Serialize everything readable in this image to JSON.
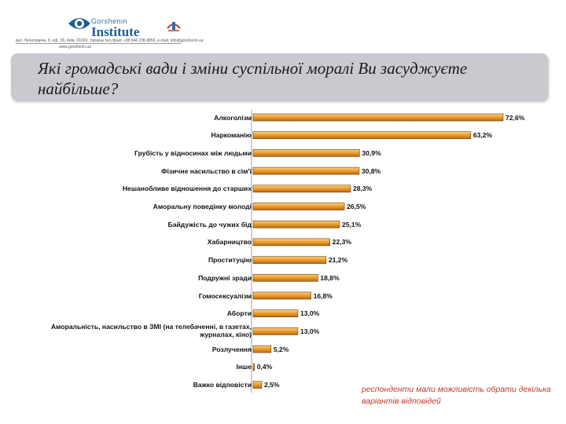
{
  "logo": {
    "name_top": "Gorshenin",
    "name": "Institute",
    "address": "вул. Леонтовича, 9, оф. 1Б, Київ, 01030, Україна  тел./факс +38 044 238-9856, e-mail: info@gorshenin.ua",
    "website": "www.gorshenin.ua",
    "mark_icon": "eye-logo-icon",
    "emblem_icon": "emblem-icon",
    "colors": {
      "brand": "#1d5d96"
    }
  },
  "title": "Які громадські вади і зміни суспільної моралі Ви засуджуєте найбільше?",
  "note": "респонденти мали можливість обрати декілька варіантів відповідей",
  "chart_data": {
    "type": "bar",
    "orientation": "horizontal",
    "title": "Які громадські вади і зміни суспільної моралі Ви засуджуєте найбільше?",
    "xlabel": "",
    "ylabel": "",
    "xlim": [
      0,
      100
    ],
    "grid": false,
    "legend": "none",
    "bar_color": "#f0a030",
    "categories": [
      "Алкоголізм",
      "Наркоманію",
      "Грубість у відносинах між людьми",
      "Фізичне насильство в сім'ї",
      "Нешанобливе відношення до старших",
      "Аморальну поведінку молоді",
      "Байдужість до чужих бід",
      "Хабарництво",
      "Проституцію",
      "Подружні зради",
      "Гомосексуалізм",
      "Аборти",
      "Аморальність, насильство в ЗМІ (на телебаченні, в газетах, журналах, кіно)",
      "Розлучення",
      "Інше",
      "Важко відповісти"
    ],
    "values": [
      72.6,
      63.2,
      30.9,
      30.8,
      28.3,
      26.5,
      25.1,
      22.3,
      21.2,
      18.8,
      16.8,
      13.0,
      13.0,
      5.2,
      0.4,
      2.5
    ],
    "labels": [
      "72,6%",
      "63,2%",
      "30,9%",
      "30,8%",
      "28,3%",
      "26,5%",
      "25,1%",
      "22,3%",
      "21,2%",
      "18,8%",
      "16,8%",
      "13,0%",
      "13,0%",
      "5,2%",
      "0,4%",
      "2,5%"
    ]
  }
}
